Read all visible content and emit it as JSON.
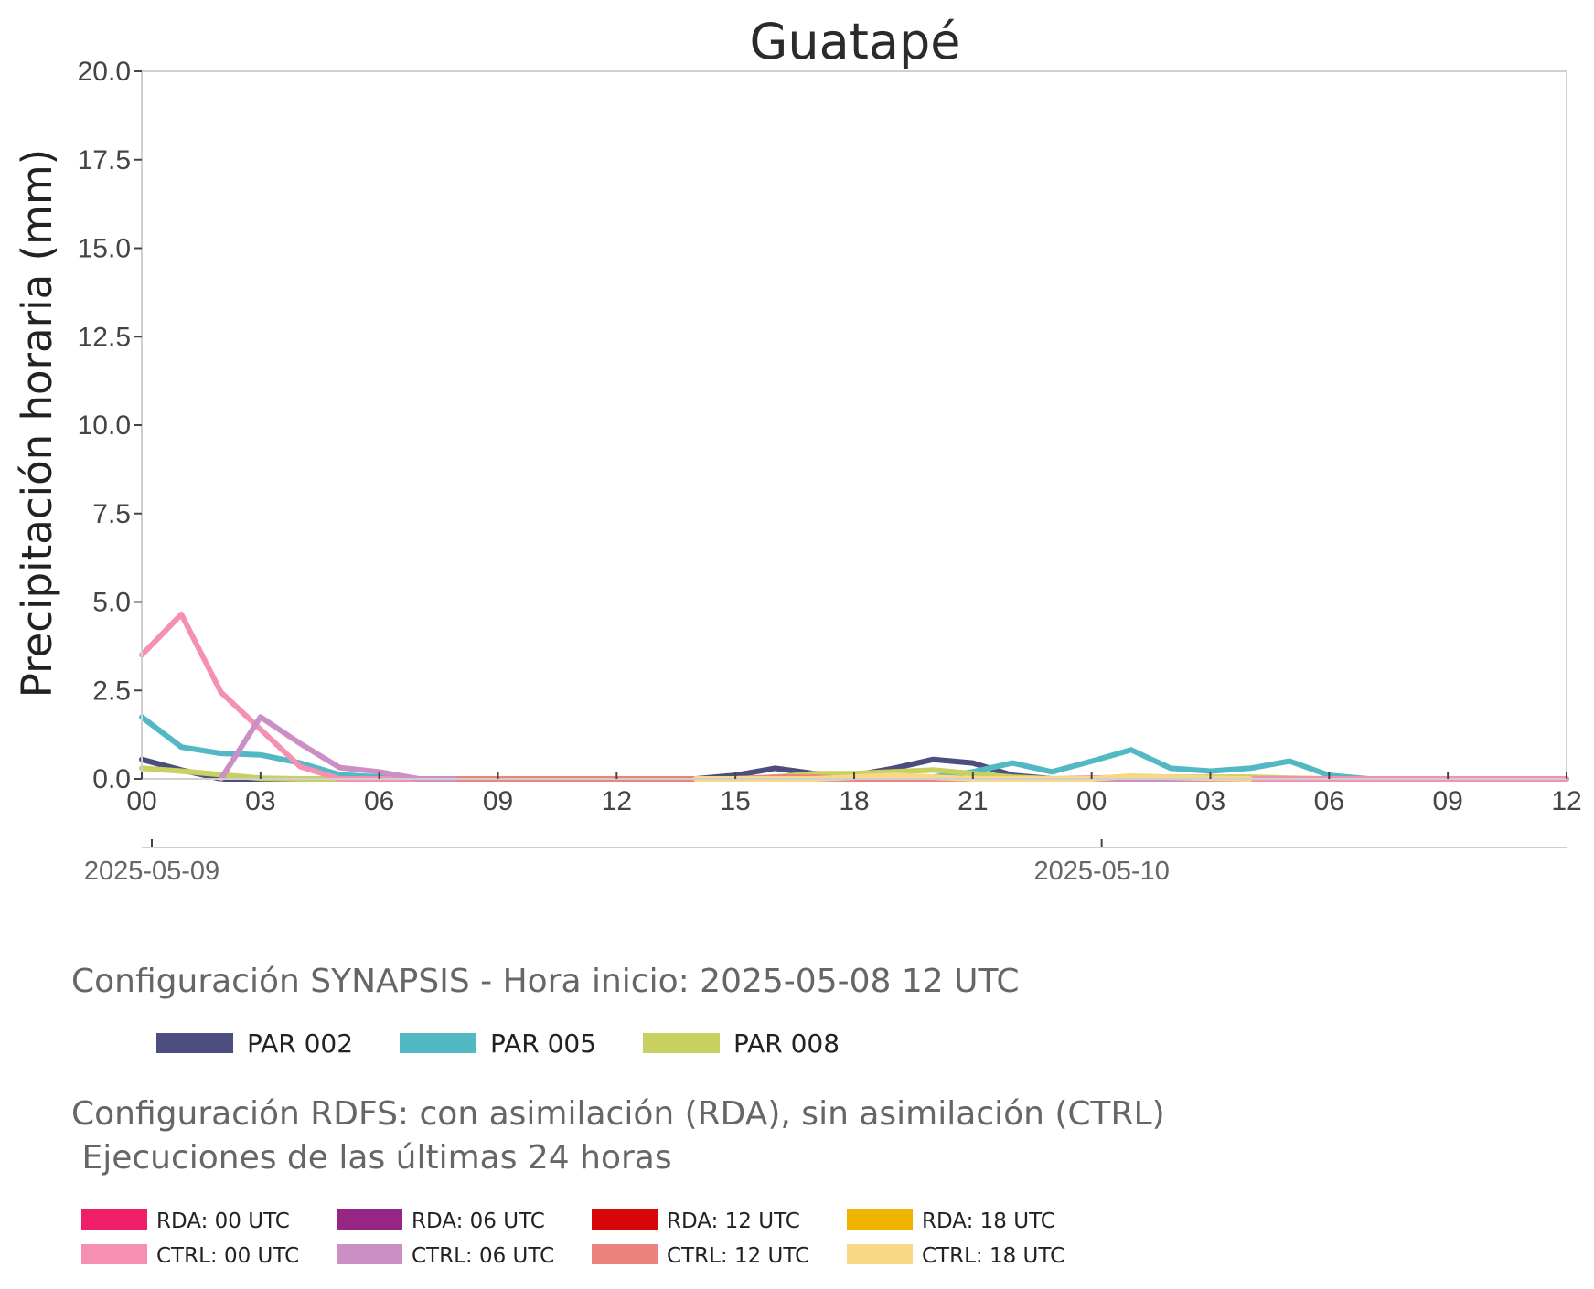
{
  "chart_data": {
    "type": "line",
    "title": "Guatapé",
    "ylabel": "Precipitación horaria (mm)",
    "xlabel": "",
    "ylim": [
      0,
      20
    ],
    "xlim": [
      "2025-05-09 00:00",
      "2025-05-10 12:00"
    ],
    "y_ticks": [
      "0.0",
      "2.5",
      "5.0",
      "7.5",
      "10.0",
      "12.5",
      "15.0",
      "17.5",
      "20.0"
    ],
    "x_ticks": [
      "00",
      "03",
      "06",
      "09",
      "12",
      "15",
      "18",
      "21",
      "00",
      "03",
      "06",
      "09",
      "12"
    ],
    "date_labels": [
      "2025-05-09",
      "2025-05-10"
    ],
    "grid": false,
    "x": [
      "2025-05-09 00:00",
      "2025-05-09 01:00",
      "2025-05-09 02:00",
      "2025-05-09 03:00",
      "2025-05-09 04:00",
      "2025-05-09 05:00",
      "2025-05-09 06:00",
      "2025-05-09 07:00",
      "2025-05-09 08:00",
      "2025-05-09 09:00",
      "2025-05-09 10:00",
      "2025-05-09 11:00",
      "2025-05-09 12:00",
      "2025-05-09 13:00",
      "2025-05-09 14:00",
      "2025-05-09 15:00",
      "2025-05-09 16:00",
      "2025-05-09 17:00",
      "2025-05-09 18:00",
      "2025-05-09 19:00",
      "2025-05-09 20:00",
      "2025-05-09 21:00",
      "2025-05-09 22:00",
      "2025-05-09 23:00",
      "2025-05-10 00:00",
      "2025-05-10 01:00",
      "2025-05-10 02:00",
      "2025-05-10 03:00",
      "2025-05-10 04:00",
      "2025-05-10 05:00",
      "2025-05-10 06:00",
      "2025-05-10 07:00",
      "2025-05-10 08:00",
      "2025-05-10 09:00",
      "2025-05-10 10:00",
      "2025-05-10 11:00",
      "2025-05-10 12:00"
    ],
    "series": [
      {
        "name": "PAR 002",
        "color": "#4b4e7e",
        "values": [
          0.55,
          0.25,
          0.0,
          0.0,
          0.0,
          0.0,
          0.0,
          0.0,
          0.0,
          0.0,
          0.0,
          0.0,
          0.0,
          0.0,
          0.0,
          0.1,
          0.3,
          0.15,
          0.1,
          0.3,
          0.55,
          0.45,
          0.1,
          0.0,
          0.0,
          0.0,
          0.0,
          0.0,
          0.0,
          0.0,
          0.0,
          0.0,
          0.0,
          0.0,
          0.0,
          0.0,
          0.0
        ]
      },
      {
        "name": "PAR 005",
        "color": "#52b8c3",
        "values": [
          1.75,
          0.9,
          0.72,
          0.68,
          0.45,
          0.12,
          0.05,
          0.0,
          0.0,
          0.0,
          0.0,
          0.0,
          0.0,
          0.0,
          0.0,
          0.0,
          0.0,
          0.0,
          0.0,
          0.0,
          0.05,
          0.2,
          0.45,
          0.2,
          0.5,
          0.82,
          0.3,
          0.22,
          0.3,
          0.5,
          0.1,
          0.0,
          0.0,
          0.0,
          0.0,
          0.0,
          0.0
        ]
      },
      {
        "name": "PAR 008",
        "color": "#c8d060",
        "values": [
          0.3,
          0.22,
          0.12,
          0.02,
          0.0,
          0.0,
          0.0,
          0.0,
          0.0,
          0.0,
          0.0,
          0.0,
          0.0,
          0.0,
          0.0,
          0.0,
          0.05,
          0.15,
          0.15,
          0.2,
          0.25,
          0.15,
          0.05,
          0.0,
          0.0,
          0.02,
          0.05,
          0.05,
          0.05,
          0.02,
          0.0,
          0.0,
          0.0,
          0.0,
          0.0,
          0.0,
          0.0
        ]
      },
      {
        "name": "CTRL: 00 UTC",
        "color": "#f590b2",
        "values": [
          3.5,
          4.65,
          2.45,
          1.4,
          0.35,
          0.0,
          0.0,
          0.0,
          0.0,
          0.0,
          0.0,
          0.0,
          0.0,
          0.0,
          0.0,
          0.0,
          0.0,
          0.0,
          0.0,
          0.0,
          0.0,
          0.0,
          0.0,
          0.0,
          0.0,
          0.0,
          0.0,
          0.0,
          0.0,
          0.0,
          0.0,
          0.0,
          0.0,
          0.0,
          0.0,
          0.0,
          0.0
        ]
      },
      {
        "name": "CTRL: 06 UTC",
        "color": "#cb8fc5",
        "values": [
          null,
          null,
          0.0,
          1.75,
          1.0,
          0.32,
          0.2,
          0.0,
          0.0,
          0.0,
          0.0,
          0.0,
          0.0,
          0.0,
          0.0,
          0.0,
          0.0,
          0.0,
          0.0,
          0.0,
          0.0,
          0.0,
          0.0,
          0.0,
          0.0,
          0.0,
          0.0,
          0.0,
          0.0,
          null,
          null,
          null,
          null,
          null,
          null,
          null,
          null
        ]
      },
      {
        "name": "CTRL: 12 UTC",
        "color": "#ec837f",
        "values": [
          null,
          null,
          null,
          null,
          null,
          null,
          null,
          null,
          0.0,
          0.0,
          0.0,
          0.0,
          0.0,
          0.0,
          0.0,
          0.0,
          0.05,
          0.05,
          0.0,
          0.0,
          0.0,
          0.0,
          0.0,
          0.0,
          0.02,
          0.05,
          0.05,
          0.02,
          0.0,
          null,
          null,
          null,
          null,
          null,
          null,
          null,
          null
        ]
      },
      {
        "name": "CTRL: 18 UTC",
        "color": "#f8d886",
        "values": [
          null,
          null,
          null,
          null,
          null,
          null,
          null,
          null,
          null,
          null,
          null,
          null,
          null,
          null,
          0.0,
          0.0,
          0.0,
          0.0,
          0.05,
          0.1,
          0.05,
          0.0,
          0.0,
          0.0,
          0.0,
          0.08,
          0.05,
          0.02,
          0.0,
          null,
          null,
          null,
          null,
          null,
          null,
          null,
          null
        ]
      }
    ]
  },
  "legend": {
    "synapsis_title": "Configuración SYNAPSIS - Hora inicio: 2025-05-08 12 UTC",
    "synapsis_items": [
      {
        "label": "PAR 002",
        "color": "#4b4e7e"
      },
      {
        "label": "PAR 005",
        "color": "#52b8c3"
      },
      {
        "label": "PAR 008",
        "color": "#c8d060"
      }
    ],
    "rdfs_title_line1": "Configuración RDFS: con asimilación (RDA), sin asimilación (CTRL)",
    "rdfs_title_line2": " Ejecuciones de las últimas 24 horas",
    "rdfs_items": [
      {
        "label": "RDA: 00 UTC",
        "color": "#ee1f68"
      },
      {
        "label": "RDA: 06 UTC",
        "color": "#962584"
      },
      {
        "label": "RDA: 12 UTC",
        "color": "#d70707"
      },
      {
        "label": "RDA: 18 UTC",
        "color": "#efb400"
      },
      {
        "label": "CTRL: 00 UTC",
        "color": "#f590b2"
      },
      {
        "label": "CTRL: 06 UTC",
        "color": "#cb8fc5"
      },
      {
        "label": "CTRL: 12 UTC",
        "color": "#ec837f"
      },
      {
        "label": "CTRL: 18 UTC",
        "color": "#f8d886"
      }
    ]
  }
}
